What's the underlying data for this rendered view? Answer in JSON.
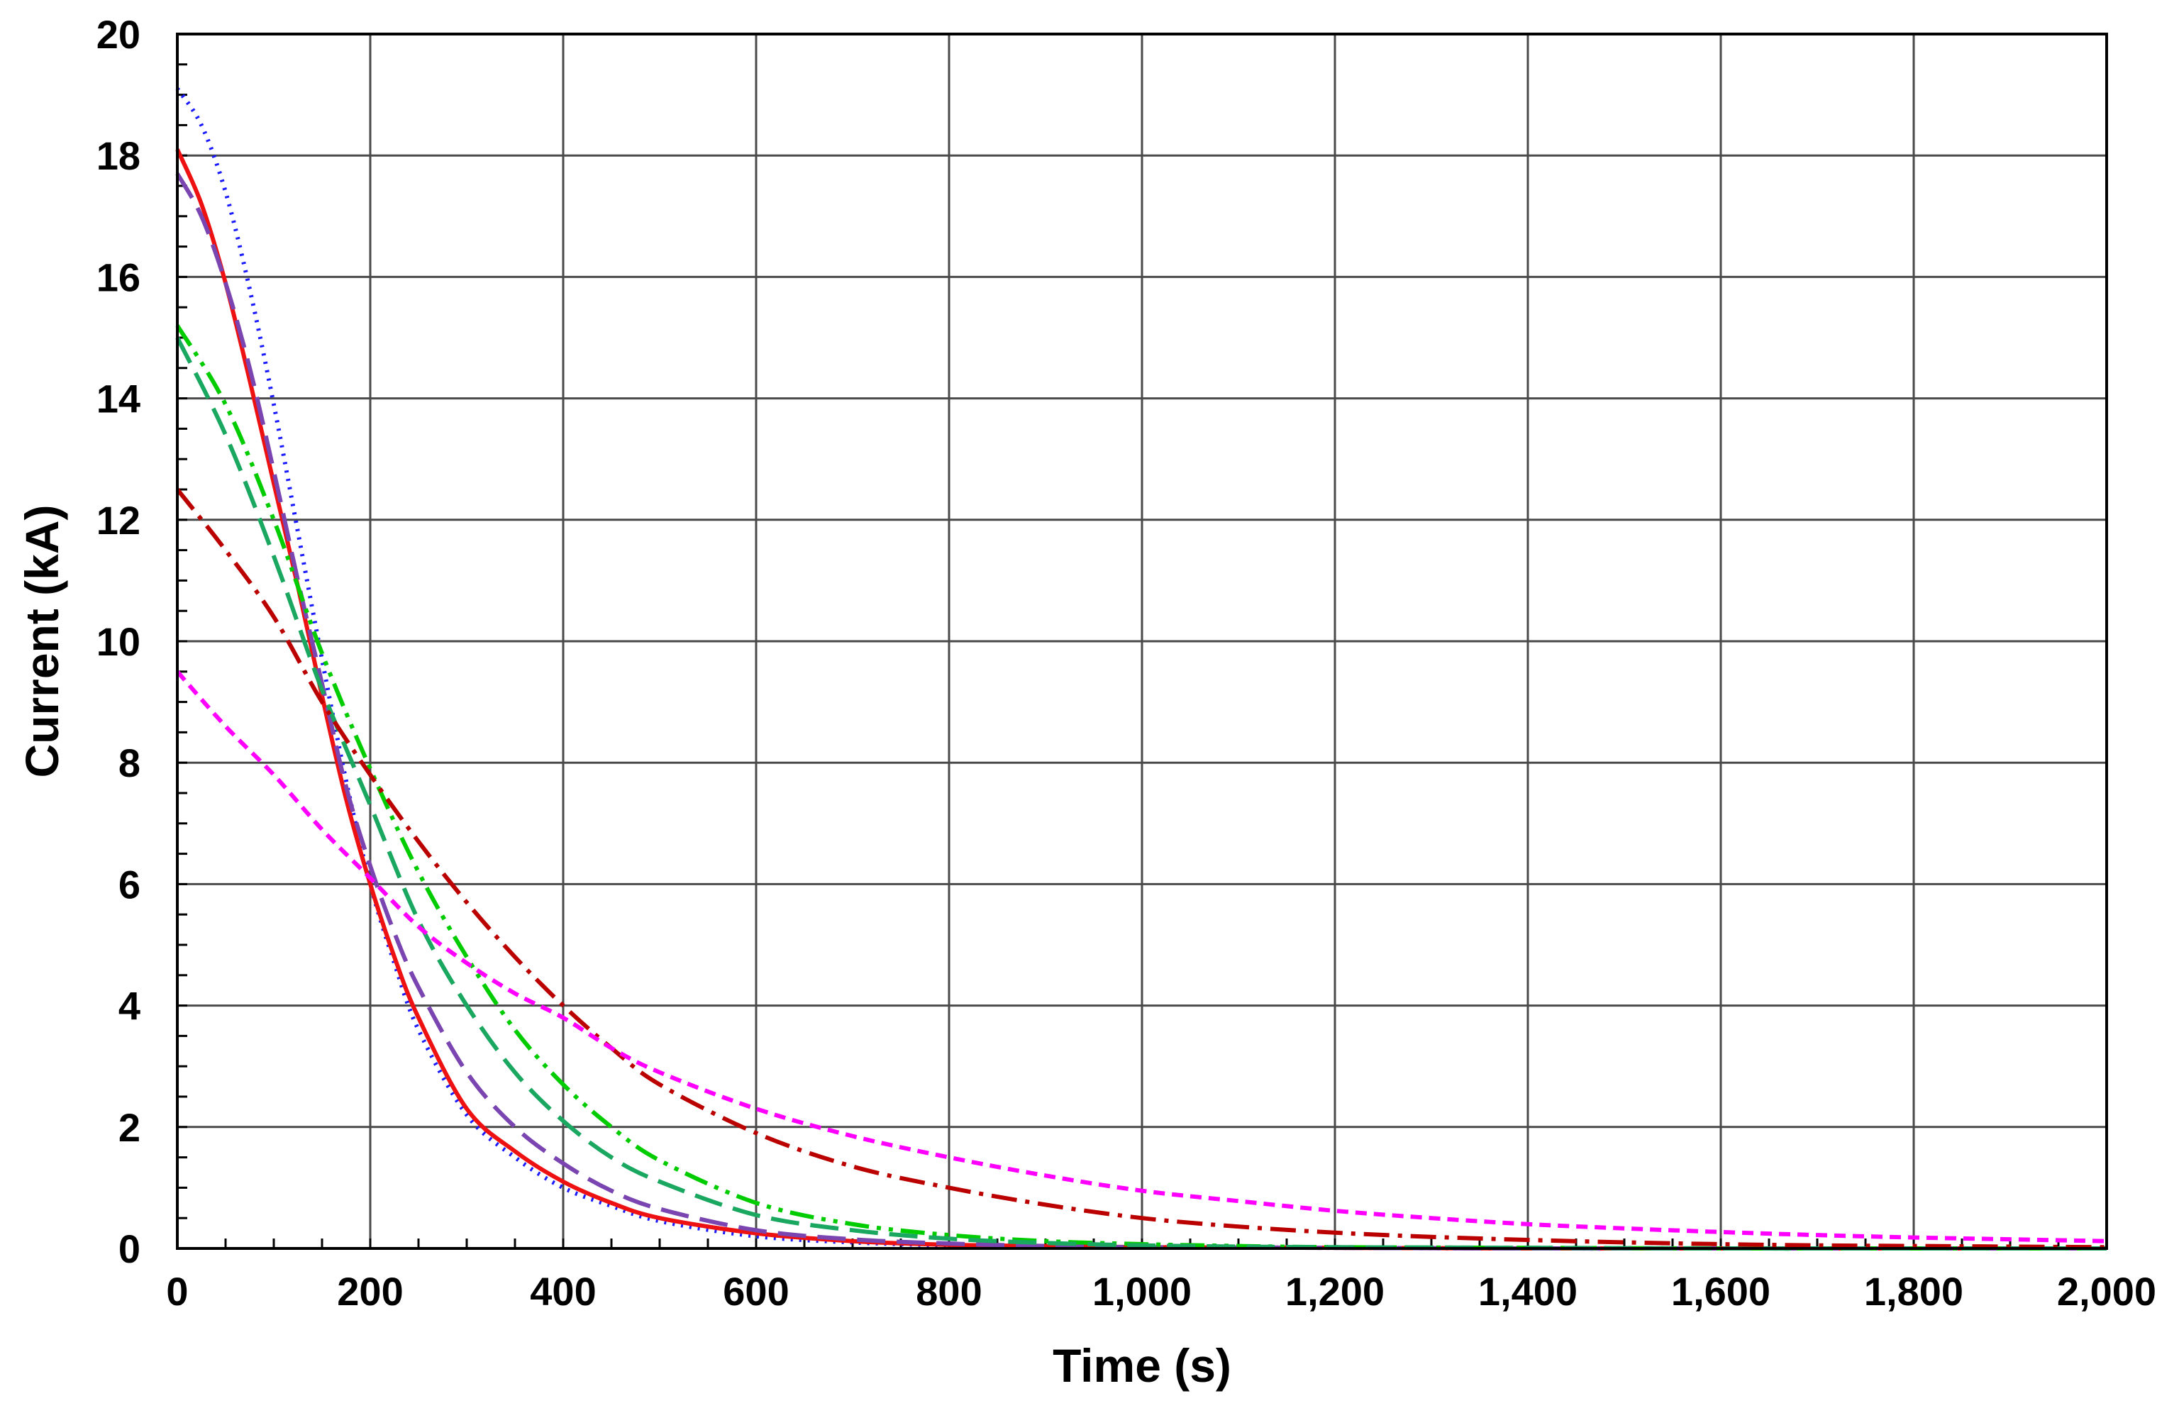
{
  "chart_data": {
    "type": "line",
    "title": "",
    "xlabel": "Time (s)",
    "ylabel": "Current (kA)",
    "xlim": [
      0,
      2000
    ],
    "ylim": [
      0,
      20
    ],
    "x_ticks": [
      0,
      200,
      400,
      600,
      800,
      1000,
      1200,
      1400,
      1600,
      1800,
      2000
    ],
    "x_tick_labels": [
      "0",
      "200",
      "400",
      "600",
      "800",
      "1,000",
      "1,200",
      "1,400",
      "1,600",
      "1,800",
      "2,000"
    ],
    "y_ticks": [
      0,
      2,
      4,
      6,
      8,
      10,
      12,
      14,
      16,
      18,
      20
    ],
    "y_tick_labels": [
      "0",
      "2",
      "4",
      "6",
      "8",
      "10",
      "12",
      "14",
      "16",
      "18",
      "20"
    ],
    "grid": true,
    "legend": "none",
    "series": [
      {
        "color": "#1a1aff",
        "dash": "dotted",
        "x": [
          0,
          25,
          50,
          75,
          100,
          125,
          150,
          175,
          200,
          225,
          250,
          300,
          350,
          400,
          450,
          500,
          600,
          700,
          800,
          900,
          1000,
          1200,
          1400,
          1600,
          1800,
          2000
        ],
        "y": [
          19.1,
          18.5,
          17.4,
          15.8,
          13.9,
          11.8,
          9.7,
          7.7,
          6.0,
          4.7,
          3.6,
          2.2,
          1.5,
          1.0,
          0.7,
          0.45,
          0.2,
          0.1,
          0.05,
          0.03,
          0.02,
          0.01,
          0.0,
          0.0,
          0.0,
          0.0
        ]
      },
      {
        "color": "#ee1111",
        "dash": "solid",
        "x": [
          0,
          25,
          50,
          75,
          100,
          125,
          150,
          175,
          200,
          225,
          250,
          300,
          350,
          400,
          450,
          500,
          600,
          700,
          800,
          900,
          1000,
          1200,
          1400,
          1600,
          1800,
          2000
        ],
        "y": [
          18.1,
          17.2,
          15.9,
          14.3,
          12.6,
          10.9,
          9.1,
          7.4,
          6.0,
          4.8,
          3.8,
          2.3,
          1.6,
          1.1,
          0.75,
          0.5,
          0.25,
          0.12,
          0.06,
          0.04,
          0.02,
          0.01,
          0.0,
          0.0,
          0.0,
          0.0
        ]
      },
      {
        "color": "#7a45b0",
        "dash": "long-dash",
        "x": [
          0,
          25,
          50,
          75,
          100,
          125,
          150,
          175,
          200,
          225,
          250,
          300,
          350,
          400,
          450,
          500,
          600,
          700,
          800,
          900,
          1000,
          1200,
          1400,
          1600,
          1800,
          2000
        ],
        "y": [
          17.7,
          17.0,
          15.9,
          14.5,
          12.8,
          11.0,
          9.3,
          7.6,
          6.3,
          5.2,
          4.3,
          2.9,
          2.0,
          1.4,
          0.95,
          0.65,
          0.3,
          0.15,
          0.08,
          0.04,
          0.02,
          0.01,
          0.0,
          0.0,
          0.0,
          0.0
        ]
      },
      {
        "color": "#00cc00",
        "dash": "dash-dot-dot",
        "x": [
          0,
          50,
          100,
          150,
          200,
          250,
          300,
          350,
          400,
          450,
          500,
          600,
          700,
          800,
          900,
          1000,
          1100,
          1200,
          1400,
          1600,
          1800,
          2000
        ],
        "y": [
          15.2,
          13.9,
          12.0,
          9.8,
          7.9,
          6.2,
          4.8,
          3.6,
          2.7,
          2.0,
          1.45,
          0.75,
          0.4,
          0.22,
          0.12,
          0.07,
          0.04,
          0.02,
          0.01,
          0.0,
          0.0,
          0.0
        ]
      },
      {
        "color": "#1aa760",
        "dash": "long-dash",
        "x": [
          0,
          50,
          100,
          150,
          200,
          250,
          300,
          350,
          400,
          450,
          500,
          600,
          700,
          800,
          900,
          1000,
          1100,
          1200,
          1400,
          1600,
          1800,
          2000
        ],
        "y": [
          15.0,
          13.4,
          11.4,
          9.2,
          7.3,
          5.4,
          4.0,
          2.9,
          2.1,
          1.5,
          1.1,
          0.55,
          0.3,
          0.16,
          0.09,
          0.05,
          0.03,
          0.02,
          0.01,
          0.0,
          0.0,
          0.0
        ]
      },
      {
        "color": "#bb0000",
        "dash": "dash-dot",
        "x": [
          0,
          50,
          100,
          150,
          200,
          250,
          300,
          350,
          400,
          450,
          500,
          600,
          700,
          800,
          900,
          1000,
          1100,
          1200,
          1300,
          1400,
          1500,
          1600,
          1700,
          1800,
          1900,
          2000
        ],
        "y": [
          12.5,
          11.5,
          10.4,
          9.0,
          7.8,
          6.7,
          5.7,
          4.8,
          4.0,
          3.3,
          2.7,
          1.9,
          1.35,
          1.0,
          0.72,
          0.5,
          0.36,
          0.26,
          0.19,
          0.14,
          0.1,
          0.07,
          0.05,
          0.04,
          0.03,
          0.02
        ]
      },
      {
        "color": "#ff00ff",
        "dash": "short-dash",
        "x": [
          0,
          50,
          100,
          150,
          200,
          250,
          300,
          350,
          400,
          450,
          500,
          600,
          700,
          800,
          900,
          1000,
          1100,
          1200,
          1300,
          1400,
          1500,
          1600,
          1700,
          1800,
          1900,
          2000
        ],
        "y": [
          9.5,
          8.6,
          7.8,
          6.9,
          6.1,
          5.3,
          4.7,
          4.2,
          3.8,
          3.3,
          2.9,
          2.3,
          1.85,
          1.5,
          1.2,
          0.95,
          0.78,
          0.62,
          0.5,
          0.4,
          0.33,
          0.27,
          0.22,
          0.18,
          0.15,
          0.12
        ]
      }
    ]
  }
}
